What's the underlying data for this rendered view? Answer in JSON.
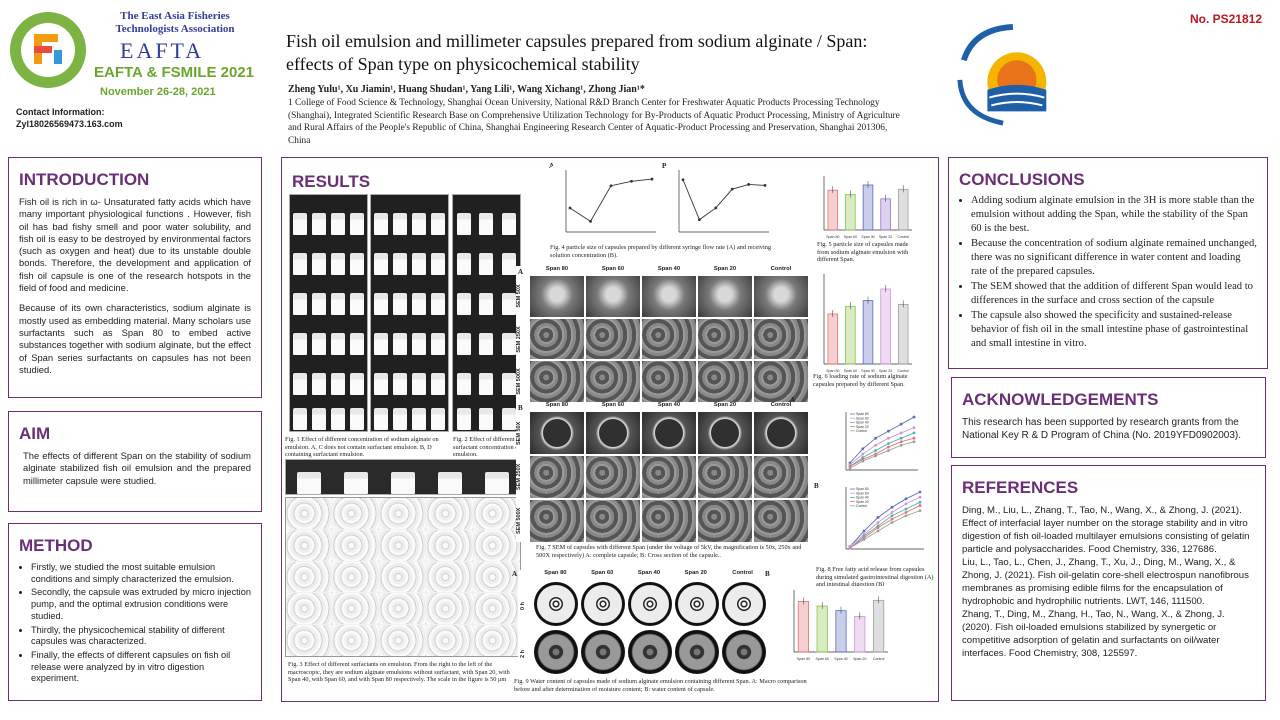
{
  "header": {
    "org_name": "The East Asia Fisheries Technologists Association",
    "eafta_logo": "EAFTA",
    "conf_name": "EAFTA & FSMILE 2021",
    "conf_date": "November 26-28, 2021",
    "contact_label": "Contact Information:",
    "contact_email": "Zyl18026569473.163.com",
    "title": "Fish oil emulsion and millimeter capsules prepared from sodium alginate / Span: effects of Span type on physicochemical stability",
    "authors": "Zheng Yulu¹, Xu Jiamin¹, Huang Shudan¹, Yang Lili¹, Wang Xichang¹, Zhong Jian¹*",
    "affiliation": "1 College of Food Science & Technology, Shanghai Ocean University, National R&D Branch Center for Freshwater Aquatic Products Processing Technology (Shanghai), Integrated Scientific Research Base on Comprehensive Utilization Technology for By-Products of Aquatic Product Processing, Ministry of Agriculture and Rural Affairs of the People's Republic of China, Shanghai Engineering Research Center of Aquatic-Product Processing and Preservation, Shanghai 201306, China",
    "poster_no": "No. PS21812"
  },
  "colors": {
    "accent": "#6b2f78",
    "conf_green": "#6aa72f",
    "org_blue": "#2f3d9a",
    "poster_red": "#c0171d"
  },
  "intro": {
    "heading": "INTRODUCTION",
    "p1": "Fish oil is rich in ω- Unsaturated fatty acids which have many important physiological functions . However, fish oil has bad fishy smell and poor water solubility, and fish oil is easy to be destroyed by environmental factors (such as oxygen and heat) due to its unstable double bonds. Therefore, the development and application of fish oil capsule is one of the research hotspots in the field of food and medicine.",
    "p2": "Because of its own characteristics, sodium alginate is mostly used as embedding material. Many scholars use surfactants such as Span 80 to embed active substances together with sodium alginate, but the effect of Span series surfactants on capsules has not been studied."
  },
  "aim": {
    "heading": "AIM",
    "text": "The effects of different Span on the stability of sodium alginate stabilized fish oil emulsion and the prepared millimeter capsule were studied."
  },
  "method": {
    "heading": "METHOD",
    "items": [
      "Firstly, we studied the most suitable emulsion conditions and simply characterized the emulsion.",
      "Secondly, the capsule was extruded by micro injection pump, and the optimal extrusion conditions were studied.",
      "Thirdly, the physicochemical stability of different capsules was characterized.",
      "Finally, the effects of different capsules on fish oil release were analyzed by in vitro digestion experiment."
    ]
  },
  "results": {
    "heading": "RESULTS",
    "fig1": "Fig. 1 Effect of different concentration of sodium alginate on emulsion. A, C does not contain surfactant emulsion. B, D containing surfactant emulsion.",
    "fig2": "Fig. 2 Effect of different surfactant concentration on emulsion.",
    "fig3": "Fig. 3 Effect of different surfactants on emulsion. From the right to the left of the macroscopic, they are sodium alginate emulsions without surfactant, with Span 20, with Span 40, with Span 60, and with Span 80 respectively. The scale in the figure is 50 μm",
    "fig4": "Fig. 4 particle size of capsules prepared by different syringe flow rate (A) and receiving solution concentration (B).",
    "fig5": "Fig. 5 particle size of capsules made from sodium alginate emulsion with different Span.",
    "fig6": "Fig. 6 loading rate of sodium alginate capsules prepared by different Span.",
    "fig7": "Fig. 7 SEM of capsules with different Span (under the voltage of 5kV, the magnification is 50x, 250x and 500X respectively) A: complete capsule; B: Cross section of the capsule..",
    "fig8": "Fig. 8 Free fatty acid release from capsules during simulated gastrointestinal digestion (A) and intestinal digestion (B)",
    "fig9": "Fig. 9 Water content of capsules made of sodium alginate emulsion containing different Span. A: Macro comparison before and after determination of moisture content; B: water content of capsule.",
    "sem_cols": [
      "Span 80",
      "Span 60",
      "Span 40",
      "Span 20",
      "Control"
    ],
    "sem_rows": [
      "SEM 50X",
      "SEM 250X",
      "SEM 500X"
    ],
    "fig3_rows": [
      "Macroscopic",
      "Span 20",
      "Span 40",
      "Span 60",
      "Span 80",
      "Control"
    ],
    "panel_a": "A",
    "panel_b": "B",
    "fig9_rows": [
      "0 h",
      "2 h"
    ]
  },
  "conclusions": {
    "heading": "CONCLUSIONS",
    "items": [
      "Adding sodium alginate emulsion in the 3H is more stable than the emulsion without adding the Span, while the stability of the Span 60 is the best.",
      "Because the concentration of sodium alginate remained unchanged, there was no significant difference in water content and loading rate of the prepared capsules.",
      "The SEM showed that the addition of different Span would lead to differences in the surface and cross section of the capsule",
      "The capsule also showed the specificity and sustained-release behavior of fish oil in the small intestine phase of gastrointestinal and small intestine in vitro."
    ]
  },
  "ack": {
    "heading": "ACKNOWLEDGEMENTS",
    "text": "This research has been supported by research grants from the National Key R & D Program of China (No. 2019YFD0902003)."
  },
  "refs": {
    "heading": "REFERENCES",
    "items": [
      "Ding, M., Liu, L., Zhang, T., Tao, N., Wang, X., & Zhong, J. (2021). Effect of interfacial layer number on the storage stability and in vitro digestion of fish oil-loaded multilayer emulsions consisting of gelatin particle and polysaccharides. Food Chemistry, 336, 127686.",
      "Liu, L., Tao, L., Chen, J., Zhang, T., Xu, J., Ding, M., Wang, X., & Zhong, J. (2021). Fish oil-gelatin core-shell electrospun nanofibrous membranes as promising edible films for the encapsulation of hydrophobic and hydrophilic nutrients. LWT, 146, 111500.",
      "Zhang, T., Ding, M., Zhang, H., Tao, N., Wang, X., & Zhong, J. (2020). Fish oil-loaded emulsions stabilized by synergetic or competitive adsorption of gelatin and surfactants on oil/water interfaces. Food Chemistry, 308, 125597."
    ]
  },
  "chart_data": [
    {
      "type": "line",
      "id": "fig4a",
      "panel": "A",
      "x": [
        1,
        2,
        3,
        4,
        5
      ],
      "series": [
        {
          "values": [
            1.9,
            1.6,
            2.4,
            2.5,
            2.55
          ]
        }
      ]
    },
    {
      "type": "line",
      "id": "fig4b",
      "panel": "B",
      "x": [
        1,
        2,
        3,
        4,
        5,
        6
      ],
      "series": [
        {
          "values": [
            2.6,
            1.75,
            2.0,
            2.4,
            2.5,
            2.48
          ]
        }
      ]
    },
    {
      "type": "bar",
      "id": "fig5",
      "categories": [
        "Span 80",
        "Span 60",
        "Span 40",
        "Span 20",
        "Control"
      ],
      "values": [
        2.3,
        2.05,
        2.6,
        1.8,
        2.35
      ],
      "colors": [
        "#e57373",
        "#8bc34a",
        "#5c6bc0",
        "#9575cd",
        "#9e9e9e"
      ]
    },
    {
      "type": "bar",
      "id": "fig6",
      "categories": [
        "Span 80",
        "Span 60",
        "Span 40",
        "Span 20",
        "Control"
      ],
      "values": [
        52,
        60,
        66,
        78,
        62
      ],
      "colors": [
        "#e57373",
        "#8bc34a",
        "#5c6bc0",
        "#ce93d8",
        "#9e9e9e"
      ]
    },
    {
      "type": "line",
      "id": "fig8a",
      "panel": "A",
      "x": [
        0,
        1,
        2,
        3,
        4,
        5
      ],
      "legend": [
        "Span 80",
        "Span 60",
        "Span 40",
        "Span 20",
        "Control"
      ],
      "series": [
        {
          "name": "Span 80",
          "values": [
            10,
            18,
            24,
            28,
            32,
            36
          ]
        },
        {
          "name": "Span 60",
          "values": [
            9,
            15,
            20,
            24,
            27,
            30
          ]
        },
        {
          "name": "Span 40",
          "values": [
            8,
            13,
            17,
            21,
            24,
            27
          ]
        },
        {
          "name": "Span 20",
          "values": [
            8,
            12,
            15,
            19,
            22,
            24
          ]
        },
        {
          "name": "Control",
          "values": [
            7,
            11,
            14,
            17,
            20,
            22
          ]
        }
      ]
    },
    {
      "type": "line",
      "id": "fig8b",
      "panel": "B",
      "x": [
        0,
        1,
        2,
        3,
        4,
        5
      ],
      "legend": [
        "Span 80",
        "Span 60",
        "Span 40",
        "Span 20",
        "Control"
      ],
      "series": [
        {
          "name": "Span 80",
          "values": [
            5,
            14,
            22,
            28,
            33,
            37
          ]
        },
        {
          "name": "Span 60",
          "values": [
            5,
            12,
            19,
            25,
            30,
            34
          ]
        },
        {
          "name": "Span 40",
          "values": [
            4,
            11,
            17,
            23,
            27,
            31
          ]
        },
        {
          "name": "Span 20",
          "values": [
            4,
            10,
            16,
            21,
            25,
            29
          ]
        },
        {
          "name": "Control",
          "values": [
            4,
            9,
            14,
            19,
            23,
            26
          ]
        }
      ]
    },
    {
      "type": "bar",
      "id": "fig9b",
      "panel": "B",
      "categories": [
        "Span 80",
        "Span 60",
        "Span 40",
        "Span 20",
        "Control"
      ],
      "values": [
        88,
        80,
        72,
        62,
        90
      ],
      "colors": [
        "#e57373",
        "#8bc34a",
        "#5c6bc0",
        "#ce93d8",
        "#9e9e9e"
      ]
    }
  ]
}
